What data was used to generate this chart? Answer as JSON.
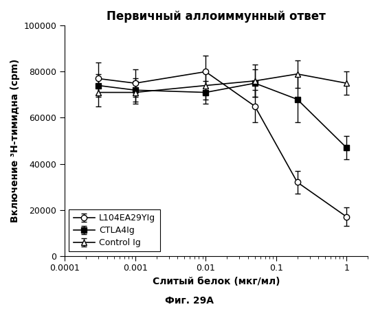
{
  "title": "Первичный аллоиммунный ответ",
  "xlabel": "Слитый белок (мкг/мл)",
  "ylabel": "Включение ³H-тимидна (срm)",
  "caption": "Фиг. 29А",
  "xvalues": [
    0.0003,
    0.001,
    0.01,
    0.05,
    0.2,
    1.0
  ],
  "L104EA29YIg_y": [
    77000,
    75000,
    80000,
    65000,
    32000,
    17000
  ],
  "L104EA29YIg_yerr_up": [
    7000,
    6000,
    7000,
    7000,
    5000,
    4000
  ],
  "L104EA29YIg_yerr_dn": [
    7000,
    6000,
    7000,
    7000,
    5000,
    4000
  ],
  "CTLA4Ig_y": [
    74000,
    72000,
    71000,
    75000,
    68000,
    47000
  ],
  "CTLA4Ig_yerr_up": [
    5000,
    5000,
    5000,
    6000,
    10000,
    5000
  ],
  "CTLA4Ig_yerr_dn": [
    5000,
    5000,
    5000,
    6000,
    10000,
    5000
  ],
  "ControlIg_y": [
    71000,
    71000,
    74000,
    76000,
    79000,
    75000
  ],
  "ControlIg_yerr_up": [
    6000,
    5000,
    6000,
    7000,
    6000,
    5000
  ],
  "ControlIg_yerr_dn": [
    6000,
    5000,
    6000,
    7000,
    6000,
    5000
  ],
  "ylim": [
    0,
    100000
  ],
  "yticks": [
    0,
    20000,
    40000,
    60000,
    80000,
    100000
  ],
  "xlim_left": 0.0001,
  "xlim_right": 2.0,
  "xticks": [
    0.0001,
    0.001,
    0.01,
    0.1,
    1.0
  ],
  "xticklabels": [
    "0.0001",
    "0.001",
    "0.01",
    "0.1",
    "1"
  ],
  "background_color": "#ffffff"
}
